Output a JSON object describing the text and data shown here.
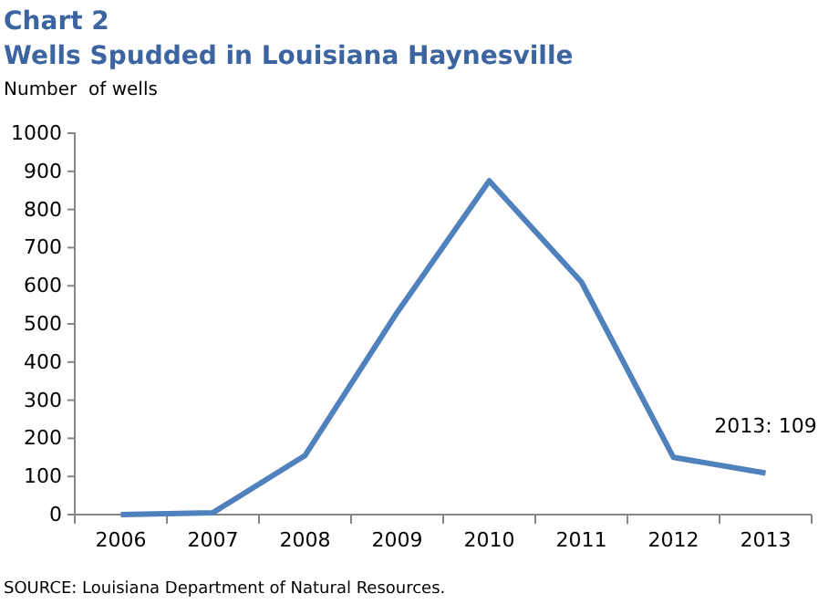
{
  "chart_data": {
    "type": "line",
    "title": "Chart 2",
    "subtitle": "Wells Spudded in Louisiana Haynesville",
    "ylabel": "Number  of wells",
    "categories": [
      "2006",
      "2007",
      "2008",
      "2009",
      "2010",
      "2011",
      "2012",
      "2013"
    ],
    "series": [
      {
        "color": "#4f81bd",
        "values": [
          0,
          5,
          155,
          530,
          875,
          610,
          150,
          109
        ]
      }
    ],
    "ylim": [
      0,
      1000
    ],
    "yticks": [
      0,
      100,
      200,
      300,
      400,
      500,
      600,
      700,
      800,
      900,
      1000
    ],
    "grid": false,
    "marker": "none",
    "line_style": "solid",
    "annotations": [
      {
        "text": "2013: 109",
        "x": "2013",
        "y": 109
      },
      "SOURCE: Louisiana Department of Natural Resources."
    ]
  }
}
